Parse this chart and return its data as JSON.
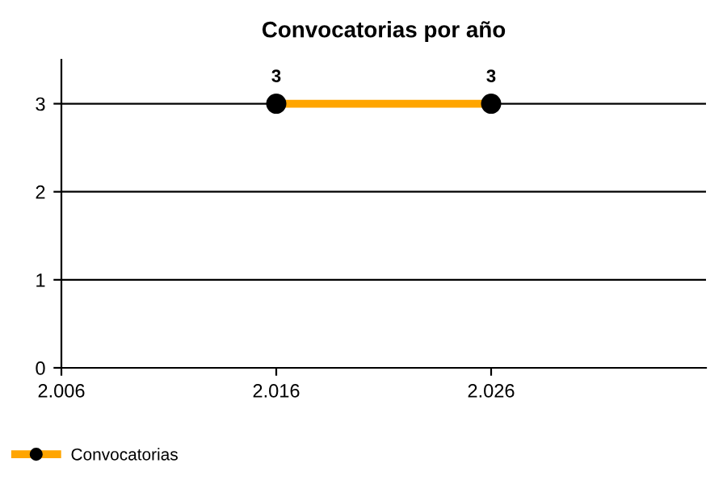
{
  "chart_data": {
    "type": "line",
    "title": "Convocatorias por año",
    "x": [
      2016,
      2026
    ],
    "series": [
      {
        "name": "Convocatorias",
        "color": "#ffa500",
        "values": [
          3,
          3
        ]
      }
    ],
    "xlim": [
      2006,
      2036
    ],
    "xticks": [
      {
        "value": 2006,
        "label": "2.006"
      },
      {
        "value": 2016,
        "label": "2.016"
      },
      {
        "value": 2026,
        "label": "2.026"
      }
    ],
    "ylim": [
      0,
      3.5
    ],
    "yticks": [
      0,
      1,
      2,
      3
    ],
    "grid": "y",
    "legend": "bottom left",
    "marker": "circle",
    "line_style": "solid",
    "data_labels": true
  }
}
